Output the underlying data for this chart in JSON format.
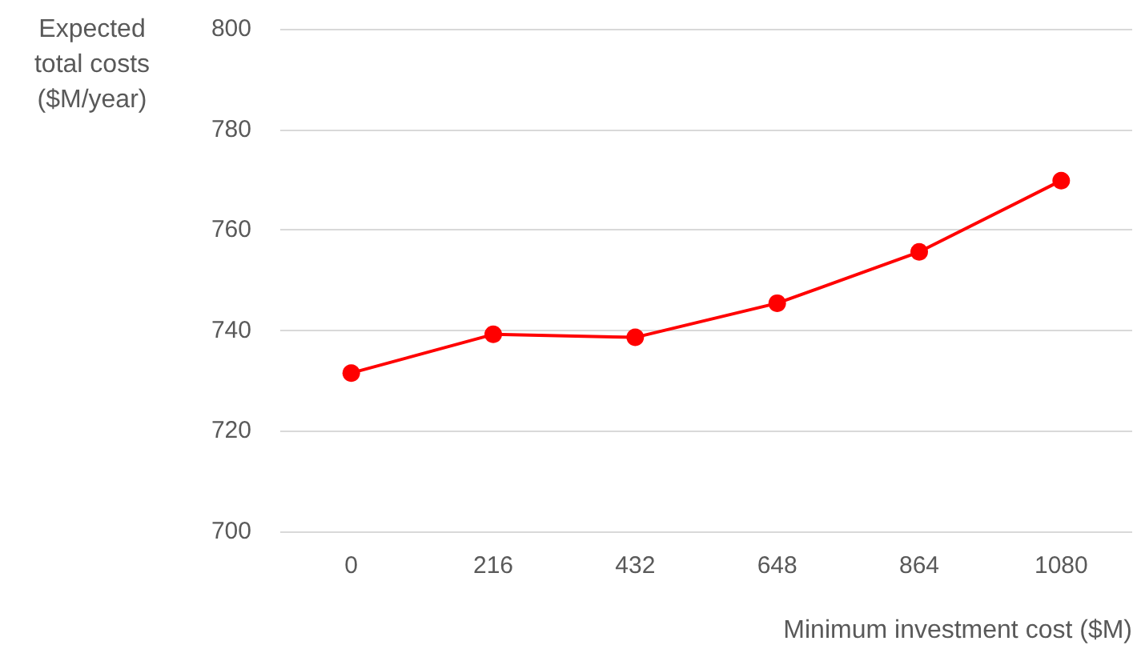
{
  "chart_data": {
    "type": "line",
    "xlabel": "Minimum investment cost ($M)",
    "ylabel": "Expected total costs ($M/year)",
    "categories": [
      "0",
      "216",
      "432",
      "648",
      "864",
      "1080"
    ],
    "series": [
      {
        "color": "#ff0000",
        "values": [
          731.5,
          739.2,
          738.6,
          745.4,
          755.6,
          769.8
        ]
      }
    ],
    "ylim": [
      700,
      800
    ],
    "yticks": [
      700,
      720,
      740,
      760,
      780,
      800
    ],
    "grid": "y",
    "marker": "circle",
    "line_style": "solid"
  }
}
